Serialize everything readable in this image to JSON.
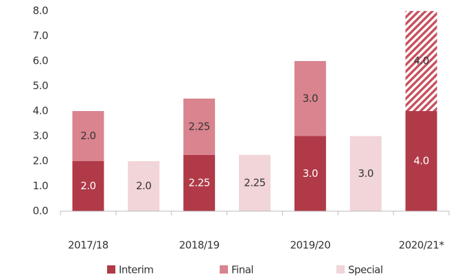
{
  "chart_data": {
    "type": "stacked_bar",
    "categories": [
      "2017/18",
      null,
      "2018/19",
      null,
      "2019/20",
      null,
      "2020/21*"
    ],
    "series": [
      {
        "name": "Interim",
        "color": "#b03a48",
        "values": [
          2.0,
          null,
          2.25,
          null,
          3.0,
          null,
          4.0
        ],
        "value_labels": [
          "2.0",
          null,
          "2.25",
          null,
          "3.0",
          null,
          "4.0"
        ],
        "label_color": "#ffffff"
      },
      {
        "name": "Final",
        "color": "#d9848e",
        "values": [
          2.0,
          null,
          2.25,
          null,
          3.0,
          null,
          4.0
        ],
        "value_labels": [
          "2.0",
          null,
          "2.25",
          null,
          "3.0",
          null,
          "4.0"
        ],
        "label_color": "#333333",
        "hatched": [
          false,
          false,
          false,
          false,
          false,
          false,
          true
        ]
      },
      {
        "name": "Special",
        "color": "#f2d5d8",
        "values": [
          null,
          2.0,
          null,
          2.25,
          null,
          3.0,
          null
        ],
        "value_labels": [
          null,
          "2.0",
          null,
          "2.25",
          null,
          "3.0",
          null
        ],
        "label_color": "#333333"
      }
    ],
    "ylim": [
      0,
      8
    ],
    "yticks": [
      {
        "value": 0,
        "label": "0.0"
      },
      {
        "value": 1,
        "label": "1.0"
      },
      {
        "value": 2,
        "label": "2.0"
      },
      {
        "value": 3,
        "label": "3.0"
      },
      {
        "value": 4,
        "label": "4.0"
      },
      {
        "value": 5,
        "label": "5.0"
      },
      {
        "value": 6,
        "label": "6.0"
      },
      {
        "value": 7,
        "label": "7.0"
      },
      {
        "value": 8,
        "label": "8.0"
      }
    ],
    "grid": false,
    "legend": "bottom"
  }
}
